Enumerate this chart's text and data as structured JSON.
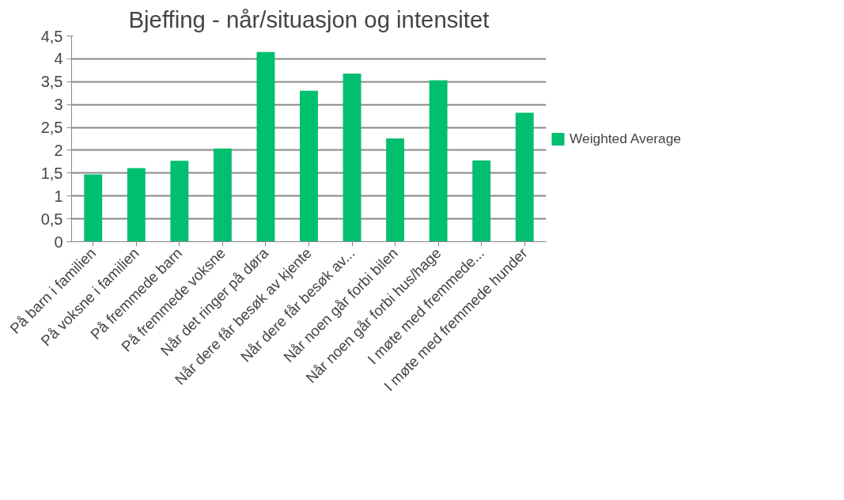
{
  "chart_data": {
    "type": "bar",
    "title": "Bjeffing - når/situasjon og intensitet",
    "categories": [
      "På barn i familien",
      "På voksne i familien",
      "På fremmede barn",
      "På fremmede voksne",
      "Når det ringer på døra",
      "Når dere får besøk av kjente",
      "Når dere får besøk av...",
      "Når noen går forbi bilen",
      "Når noen går forbi hus/hage",
      "I møte med fremmede...",
      "I møte med fremmede hunder"
    ],
    "series": [
      {
        "name": "Weighted Average",
        "color": "#00bf6f",
        "values": [
          1.47,
          1.61,
          1.77,
          2.04,
          4.15,
          3.3,
          3.68,
          2.26,
          3.53,
          1.78,
          2.82
        ]
      }
    ],
    "ylim": [
      0,
      4.5
    ],
    "yticks": [
      0,
      {
        "value": 0.5,
        "label": "0,5"
      },
      1,
      {
        "value": 1.5,
        "label": "1,5"
      },
      2,
      {
        "value": 2.5,
        "label": "2,5"
      },
      3,
      {
        "value": 3.5,
        "label": "3,5"
      },
      4,
      {
        "value": 4.5,
        "label": "4,5"
      }
    ],
    "grid": "y",
    "legend": "right"
  }
}
